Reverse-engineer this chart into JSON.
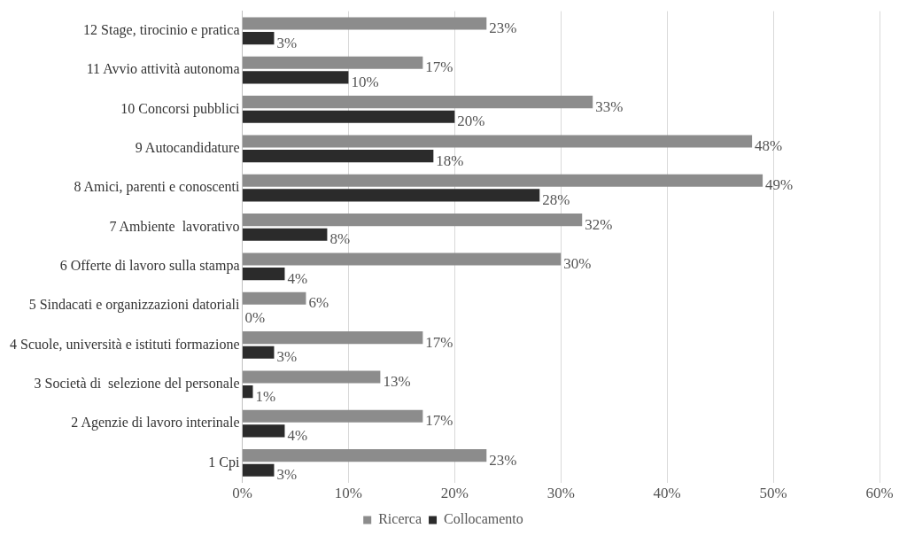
{
  "chart_data": {
    "type": "bar",
    "orientation": "horizontal",
    "categories": [
      "12 Stage, tirocinio e pratica",
      "11 Avvio attività autonoma",
      "10 Concorsi pubblici",
      "9 Autocandidature",
      "8 Amici, parenti e conoscenti",
      "7 Ambiente  lavorativo",
      "6 Offerte di lavoro sulla stampa",
      "5 Sindacati e organizzazioni datoriali",
      "4 Scuole, università e istituti formazione",
      "3 Società di  selezione del personale",
      "2 Agenzie di lavoro interinale",
      "1 Cpi"
    ],
    "series": [
      {
        "name": "Ricerca",
        "color": "#8c8c8c",
        "values": [
          23,
          17,
          33,
          48,
          49,
          32,
          30,
          6,
          17,
          13,
          17,
          23
        ],
        "value_labels": [
          "23%",
          "17%",
          "33%",
          "48%",
          "49%",
          "32%",
          "30%",
          "6%",
          "17%",
          "13%",
          "17%",
          "23%"
        ]
      },
      {
        "name": "Collocamento",
        "color": "#2b2b2b",
        "values": [
          3,
          10,
          20,
          18,
          28,
          8,
          4,
          0,
          3,
          1,
          4,
          3
        ],
        "value_labels": [
          "3%",
          "10%",
          "20%",
          "18%",
          "28%",
          "8%",
          "4%",
          "0%",
          "3%",
          "1%",
          "4%",
          "3%"
        ]
      }
    ],
    "xlim": [
      0,
      60
    ],
    "xticks": [
      {
        "value": 0,
        "label": "0%"
      },
      {
        "value": 10,
        "label": "10%"
      },
      {
        "value": 20,
        "label": "20%"
      },
      {
        "value": 30,
        "label": "30%"
      },
      {
        "value": 40,
        "label": "40%"
      },
      {
        "value": 50,
        "label": "50%"
      },
      {
        "value": 60,
        "label": "60%"
      }
    ],
    "grid": "x",
    "legend": "bottom"
  }
}
